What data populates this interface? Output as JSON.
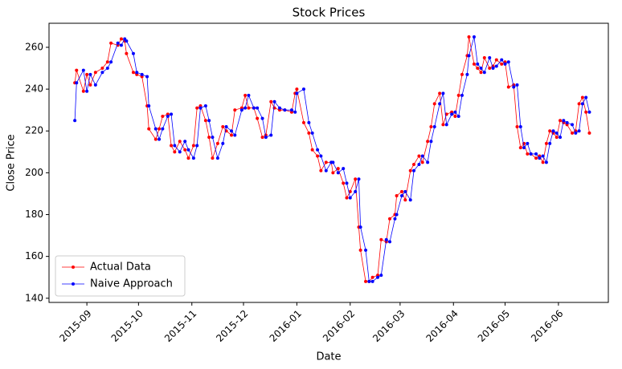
{
  "chart_data": {
    "type": "line",
    "title": "Stock Prices",
    "x_label": "Date",
    "y_label": "Close Price",
    "x": [
      -7,
      -6,
      -2,
      0,
      2,
      5,
      9,
      12,
      14,
      18,
      20,
      22,
      23,
      27,
      29,
      32,
      35,
      36,
      40,
      42,
      44,
      47,
      49,
      51,
      54,
      57,
      59,
      62,
      64,
      66,
      69,
      71,
      73,
      76,
      79,
      81,
      84,
      86,
      90,
      92,
      94,
      97,
      99,
      102,
      104,
      107,
      109,
      112,
      115,
      119,
      121,
      122,
      126,
      129,
      131,
      134,
      136,
      139,
      142,
      143,
      146,
      149,
      151,
      153,
      156,
      158,
      159,
      162,
      164,
      166,
      169,
      171,
      174,
      176,
      179,
      180,
      183,
      185,
      188,
      190,
      193,
      195,
      198,
      200,
      202,
      205,
      207,
      209,
      212,
      214,
      216,
      218,
      221,
      222,
      225,
      227,
      229,
      231,
      234,
      236,
      238,
      241,
      243,
      245,
      248,
      250,
      252,
      254,
      256,
      258,
      261,
      263,
      265,
      267,
      269,
      271,
      273,
      275,
      277,
      279,
      282,
      284,
      286,
      288,
      290,
      292
    ],
    "series": [
      {
        "name": "Actual Data",
        "color": "#ff0000",
        "values": [
          243,
          249,
          239,
          247,
          242,
          248,
          250,
          253,
          262,
          261,
          264,
          263,
          257,
          248,
          247,
          246,
          232,
          221,
          216,
          221,
          227,
          228,
          213,
          210,
          215,
          211,
          207,
          213,
          231,
          232,
          225,
          217,
          207,
          214,
          222,
          220,
          218,
          230,
          231,
          237,
          231,
          231,
          226,
          217,
          218,
          234,
          231,
          230,
          230,
          229,
          238,
          240,
          224,
          219,
          211,
          208,
          201,
          205,
          205,
          200,
          202,
          195,
          188,
          191,
          197,
          174,
          163,
          148,
          148,
          150,
          151,
          168,
          167,
          178,
          180,
          189,
          191,
          187,
          201,
          204,
          208,
          205,
          215,
          222,
          233,
          238,
          223,
          228,
          229,
          227,
          237,
          247,
          256,
          265,
          252,
          250,
          248,
          255,
          250,
          251,
          254,
          252,
          253,
          241,
          242,
          222,
          212,
          214,
          209,
          209,
          207,
          208,
          205,
          214,
          220,
          219,
          217,
          225,
          224,
          223,
          219,
          220,
          233,
          236,
          229,
          219
        ]
      },
      {
        "name": "Naive Approach",
        "color": "#0000ff",
        "values": [
          225,
          243,
          249,
          239,
          247,
          242,
          248,
          250,
          253,
          262,
          261,
          264,
          263,
          257,
          248,
          247,
          246,
          232,
          221,
          216,
          221,
          227,
          228,
          213,
          210,
          215,
          211,
          207,
          213,
          231,
          232,
          225,
          217,
          207,
          214,
          222,
          220,
          218,
          230,
          231,
          237,
          231,
          231,
          226,
          217,
          218,
          234,
          231,
          230,
          230,
          229,
          238,
          240,
          224,
          219,
          211,
          208,
          201,
          205,
          205,
          200,
          202,
          195,
          188,
          191,
          197,
          174,
          163,
          148,
          148,
          150,
          151,
          168,
          167,
          178,
          180,
          189,
          191,
          187,
          201,
          204,
          208,
          205,
          215,
          222,
          233,
          238,
          223,
          228,
          229,
          227,
          237,
          247,
          256,
          265,
          252,
          250,
          248,
          255,
          250,
          251,
          254,
          252,
          253,
          241,
          242,
          222,
          212,
          214,
          209,
          209,
          207,
          208,
          205,
          214,
          220,
          219,
          217,
          225,
          224,
          223,
          219,
          220,
          233,
          236,
          229
        ]
      }
    ],
    "xlim": [
      -22,
      303
    ],
    "xticks": [
      {
        "value": 0,
        "label": "2015-09"
      },
      {
        "value": 30,
        "label": "2015-10"
      },
      {
        "value": 61,
        "label": "2015-11"
      },
      {
        "value": 91,
        "label": "2015-12"
      },
      {
        "value": 122,
        "label": "2016-01"
      },
      {
        "value": 153,
        "label": "2016-02"
      },
      {
        "value": 182,
        "label": "2016-03"
      },
      {
        "value": 213,
        "label": "2016-04"
      },
      {
        "value": 243,
        "label": "2016-05"
      },
      {
        "value": 274,
        "label": "2016-06"
      }
    ],
    "ylim": [
      138,
      271.5
    ],
    "yticks": [
      140,
      160,
      180,
      200,
      220,
      240,
      260
    ],
    "legend": "lower left"
  }
}
